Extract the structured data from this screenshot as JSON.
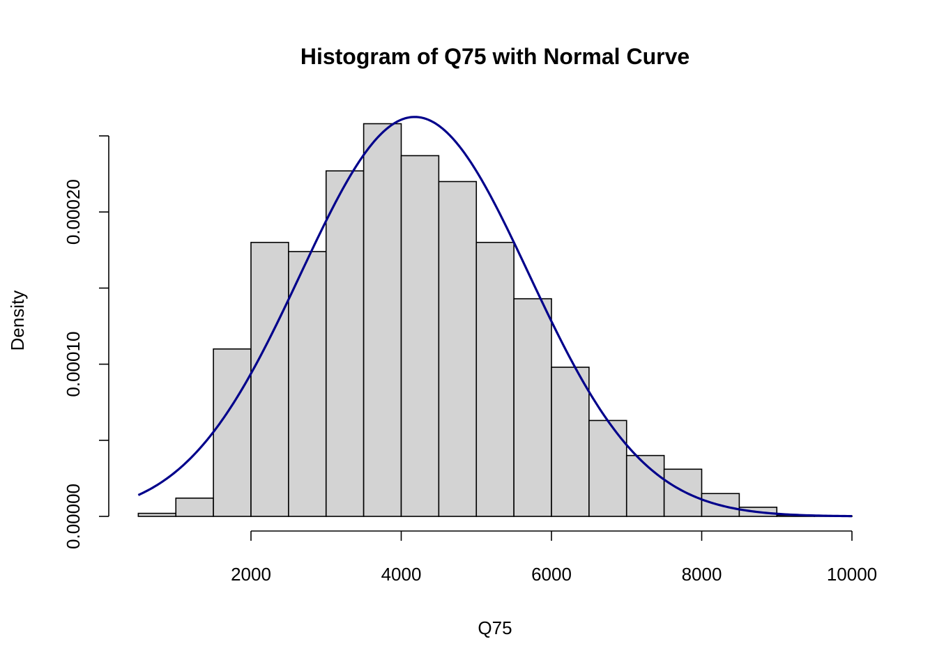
{
  "chart_data": {
    "type": "bar",
    "title": "Histogram of Q75 with Normal Curve",
    "xlabel": "Q75",
    "ylabel": "Density",
    "xlim": [
      500,
      10000
    ],
    "ylim": [
      0,
      0.00025
    ],
    "x_ticks": [
      2000,
      4000,
      6000,
      8000,
      10000
    ],
    "x_tick_labels": [
      "2000",
      "4000",
      "6000",
      "8000",
      "10000"
    ],
    "y_ticks": [
      0,
      5e-05,
      0.0001,
      0.00015,
      0.0002,
      0.00025
    ],
    "y_tick_labels": [
      "0.00000",
      "",
      "0.00010",
      "",
      "0.00020",
      ""
    ],
    "bin_edges": [
      500,
      1000,
      1500,
      2000,
      2500,
      3000,
      3500,
      4000,
      4500,
      5000,
      5500,
      6000,
      6500,
      7000,
      7500,
      8000,
      8500,
      9000,
      9500,
      10000
    ],
    "densities": [
      2e-06,
      1.2e-05,
      0.00011,
      0.00018,
      0.000174,
      0.000227,
      0.000258,
      0.000237,
      0.00022,
      0.00018,
      0.000143,
      9.8e-05,
      6.3e-05,
      4e-05,
      3.1e-05,
      1.5e-05,
      6e-06,
      8e-07,
      3e-07
    ],
    "normal_curve": {
      "mean": 4180,
      "sd": 1520
    },
    "grid": false,
    "colors": {
      "bar_fill": "#d3d3d3",
      "bar_stroke": "#000000",
      "curve": "#00008b"
    }
  }
}
